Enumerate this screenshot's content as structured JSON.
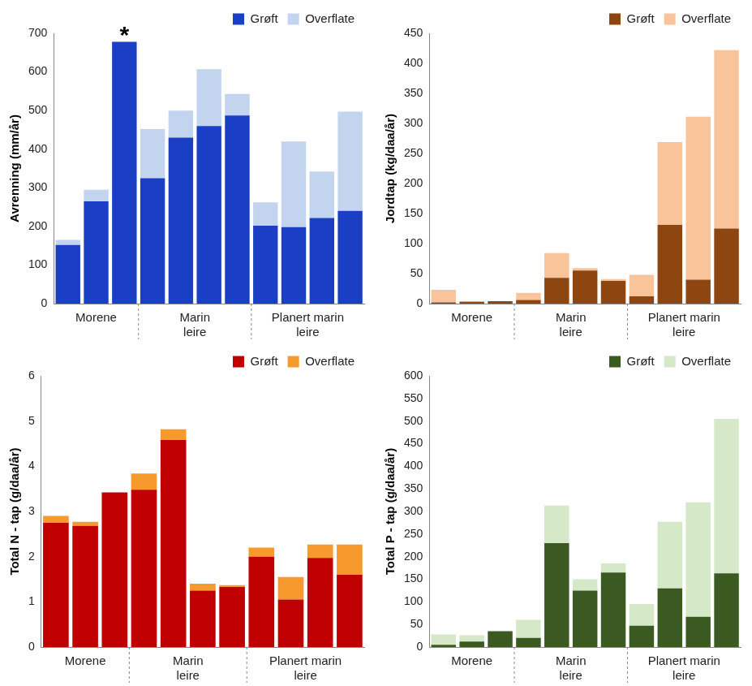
{
  "chart_data": [
    {
      "type": "bar",
      "y_label": "Avrenning (mm/år)",
      "stacked": true,
      "grid": false,
      "legend": "upper right",
      "categories": [
        null,
        null,
        null,
        null,
        null,
        null,
        null,
        null,
        null,
        null,
        null
      ],
      "groups": [
        {
          "lines": [
            "Morene"
          ],
          "size": 3
        },
        {
          "lines": [
            "Marin",
            "leire"
          ],
          "size": 4
        },
        {
          "lines": [
            "Planert marin",
            "leire"
          ],
          "size": 4
        }
      ],
      "annotations": [
        {
          "text": "*",
          "index": 2
        }
      ],
      "series": [
        {
          "name": "Grøft",
          "color": "#1b3fc4",
          "values": [
            152,
            265,
            678,
            325,
            430,
            460,
            487,
            202,
            198,
            222,
            240
          ]
        },
        {
          "name": "Overflate",
          "color": "#c3d4ef",
          "values": [
            13,
            30,
            0,
            127,
            70,
            147,
            56,
            60,
            222,
            120,
            257
          ]
        }
      ],
      "ylim": [
        0,
        700
      ],
      "yticks": [
        0,
        100,
        200,
        300,
        400,
        500,
        600,
        700
      ]
    },
    {
      "type": "bar",
      "y_label": "Jordtap (kg/daa/år)",
      "stacked": true,
      "grid": false,
      "legend": "upper right",
      "categories": [
        null,
        null,
        null,
        null,
        null,
        null,
        null,
        null,
        null,
        null,
        null
      ],
      "groups": [
        {
          "lines": [
            "Morene"
          ],
          "size": 3
        },
        {
          "lines": [
            "Marin",
            "leire"
          ],
          "size": 4
        },
        {
          "lines": [
            "Planert marin",
            "leire"
          ],
          "size": 4
        }
      ],
      "series": [
        {
          "name": "Grøft",
          "color": "#8e4610",
          "values": [
            2,
            3,
            4,
            6,
            43,
            55,
            38,
            12,
            131,
            40,
            125
          ]
        },
        {
          "name": "Overflate",
          "color": "#f9c49a",
          "values": [
            21,
            1,
            0,
            12,
            41,
            4,
            3,
            36,
            138,
            271,
            297
          ]
        }
      ],
      "ylim": [
        0,
        450
      ],
      "yticks": [
        0,
        50,
        100,
        150,
        200,
        250,
        300,
        350,
        400,
        450
      ]
    },
    {
      "type": "bar",
      "y_label": "Total N - tap (g/daa/år)",
      "stacked": true,
      "grid": false,
      "legend": "upper right",
      "categories": [
        null,
        null,
        null,
        null,
        null,
        null,
        null,
        null,
        null,
        null,
        null
      ],
      "groups": [
        {
          "lines": [
            "Morene"
          ],
          "size": 3
        },
        {
          "lines": [
            "Marin",
            "leire"
          ],
          "size": 4
        },
        {
          "lines": [
            "Planert marin",
            "leire"
          ],
          "size": 4
        }
      ],
      "series": [
        {
          "name": "Grøft",
          "color": "#c00000",
          "values": [
            2.75,
            2.68,
            3.42,
            3.48,
            4.58,
            1.25,
            1.33,
            2.0,
            1.05,
            1.97,
            1.6
          ]
        },
        {
          "name": "Overflate",
          "color": "#f79a2e",
          "values": [
            0.15,
            0.09,
            0,
            0.36,
            0.24,
            0.15,
            0.04,
            0.2,
            0.5,
            0.3,
            0.67
          ]
        }
      ],
      "ylim": [
        0,
        6
      ],
      "yticks": [
        0,
        1,
        2,
        3,
        4,
        5,
        6
      ]
    },
    {
      "type": "bar",
      "y_label": "Total P - tap (g/daa/år)",
      "stacked": true,
      "grid": false,
      "legend": "upper right",
      "categories": [
        null,
        null,
        null,
        null,
        null,
        null,
        null,
        null,
        null,
        null,
        null
      ],
      "groups": [
        {
          "lines": [
            "Morene"
          ],
          "size": 3
        },
        {
          "lines": [
            "Marin",
            "leire"
          ],
          "size": 4
        },
        {
          "lines": [
            "Planert marin",
            "leire"
          ],
          "size": 4
        }
      ],
      "series": [
        {
          "name": "Grøft",
          "color": "#3a5a22",
          "values": [
            5,
            12,
            35,
            20,
            230,
            125,
            165,
            47,
            130,
            67,
            163
          ]
        },
        {
          "name": "Overflate",
          "color": "#d5e8c8",
          "values": [
            23,
            14,
            0,
            40,
            83,
            25,
            20,
            48,
            147,
            253,
            342
          ]
        }
      ],
      "ylim": [
        0,
        600
      ],
      "yticks": [
        0,
        50,
        100,
        150,
        200,
        250,
        300,
        350,
        400,
        450,
        500,
        550,
        600
      ]
    }
  ]
}
